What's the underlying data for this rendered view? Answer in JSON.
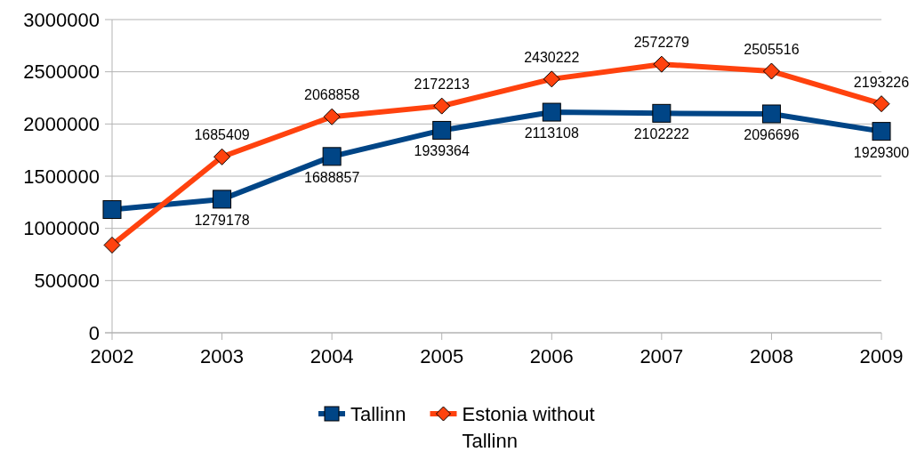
{
  "chart_data": {
    "type": "line",
    "categories": [
      "2002",
      "2003",
      "2004",
      "2005",
      "2006",
      "2007",
      "2008",
      "2009"
    ],
    "series": [
      {
        "name": "Tallinn",
        "color": "#004586",
        "marker": "square",
        "values": [
          1180000,
          1279178,
          1688857,
          1939364,
          2113108,
          2102222,
          2096696,
          1929300
        ],
        "value_labels": [
          null,
          "1279178",
          "1688857",
          "1939364",
          "2113108",
          "2102222",
          "2096696",
          "1929300"
        ]
      },
      {
        "name": "Estonia without Tallinn",
        "color": "#ff420e",
        "marker": "diamond",
        "values": [
          840000,
          1685409,
          2068858,
          2172213,
          2430222,
          2572279,
          2505516,
          2193226
        ],
        "value_labels": [
          null,
          "1685409",
          "2068858",
          "2172213",
          "2430222",
          "2572279",
          "2505516",
          "2193226"
        ]
      }
    ],
    "ylim": [
      0,
      3000000
    ],
    "yticks": [
      0,
      500000,
      1000000,
      1500000,
      2000000,
      2500000,
      3000000
    ],
    "grid": "y",
    "legend": "bottom",
    "line_style": "solid"
  }
}
